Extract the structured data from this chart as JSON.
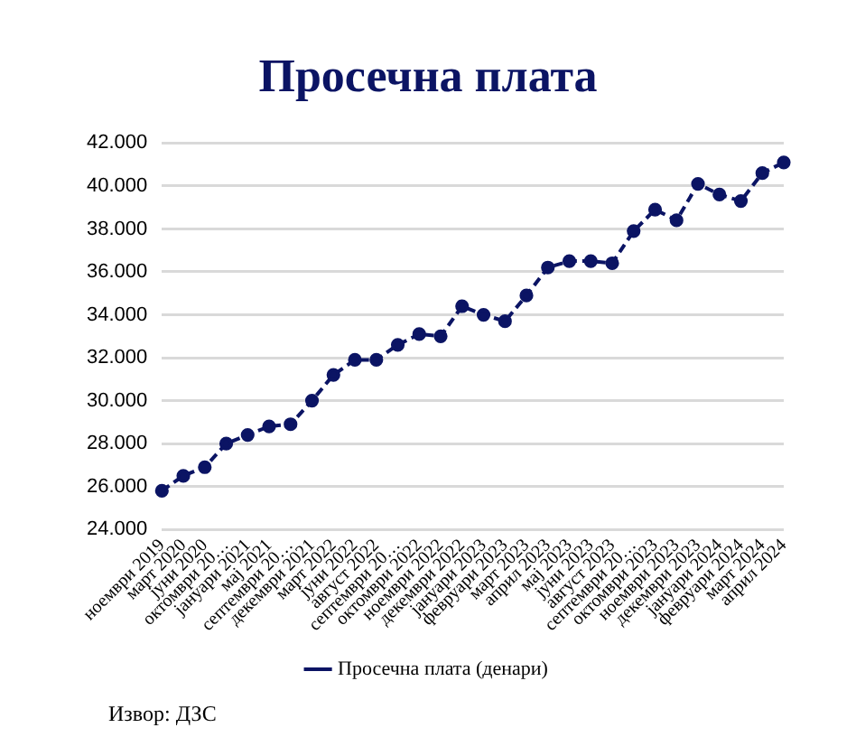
{
  "chart_data": {
    "type": "line",
    "title": "Просечна плата",
    "categories": [
      "ноември 2019",
      "март 2020",
      "јуни 2020",
      "октомври 20…",
      "јануари 2021",
      "мај 2021",
      "септември 20…",
      "декември 2021",
      "март 2022",
      "јуни 2022",
      "август 2022",
      "септември 20…",
      "октомври 2022",
      "ноември 2022",
      "декември 2022",
      "јануари 2023",
      "февруари 2023",
      "март 2023",
      "април 2023",
      "мај 2023",
      "јуни 2023",
      "август 2023",
      "септември 20…",
      "октомври 2023",
      "ноември 2023",
      "декември 2023",
      "јануари 2024",
      "февруари 2024",
      "март 2024",
      "април 2024"
    ],
    "series": [
      {
        "name": "Просечна плата (денари)",
        "color": "#0b1464",
        "values": [
          25800,
          26500,
          26900,
          28000,
          28400,
          28800,
          28900,
          30000,
          31200,
          31900,
          31900,
          32600,
          33100,
          33000,
          34400,
          34000,
          33700,
          34900,
          36200,
          36500,
          36500,
          36400,
          37900,
          38900,
          38400,
          40100,
          39600,
          39300,
          40600,
          41100
        ]
      }
    ],
    "ylim": [
      24000,
      42000
    ],
    "yticks": [
      {
        "value": 24000,
        "label": "24.000"
      },
      {
        "value": 26000,
        "label": "26.000"
      },
      {
        "value": 28000,
        "label": "28.000"
      },
      {
        "value": 30000,
        "label": "30.000"
      },
      {
        "value": 32000,
        "label": "32.000"
      },
      {
        "value": 34000,
        "label": "34.000"
      },
      {
        "value": 36000,
        "label": "36.000"
      },
      {
        "value": 38000,
        "label": "38.000"
      },
      {
        "value": 40000,
        "label": "40.000"
      },
      {
        "value": 42000,
        "label": "42.000"
      }
    ],
    "grid": "y",
    "legend": "bottom",
    "marker": "circle",
    "line_style": "dashed",
    "annotations": [
      "Извор: ДЗС"
    ]
  }
}
